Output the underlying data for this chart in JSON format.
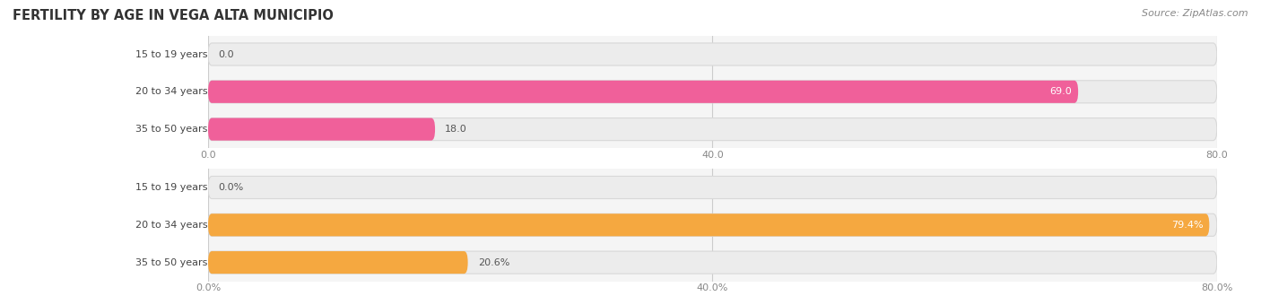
{
  "title": "FERTILITY BY AGE IN VEGA ALTA MUNICIPIO",
  "source": "Source: ZipAtlas.com",
  "chart1": {
    "categories": [
      "15 to 19 years",
      "20 to 34 years",
      "35 to 50 years"
    ],
    "values": [
      0.0,
      69.0,
      18.0
    ],
    "value_labels": [
      "0.0",
      "69.0",
      "18.0"
    ],
    "xlim": [
      0,
      80
    ],
    "xticks": [
      0.0,
      40.0,
      80.0
    ],
    "xtick_labels": [
      "0.0",
      "40.0",
      "80.0"
    ],
    "bar_color": "#f0609a",
    "bar_bg_color": "#ececec",
    "lighter_color": "#f8b8cc"
  },
  "chart2": {
    "categories": [
      "15 to 19 years",
      "20 to 34 years",
      "35 to 50 years"
    ],
    "values": [
      0.0,
      79.4,
      20.6
    ],
    "value_labels": [
      "0.0%",
      "79.4%",
      "20.6%"
    ],
    "xlim": [
      0,
      80
    ],
    "xticks": [
      0.0,
      40.0,
      80.0
    ],
    "xtick_labels": [
      "0.0%",
      "40.0%",
      "80.0%"
    ],
    "bar_color": "#f5a840",
    "bar_bg_color": "#ececec",
    "lighter_color": "#fad8a0"
  },
  "bg_color": "#f5f5f5",
  "fig_width": 14.06,
  "fig_height": 3.3,
  "title_fontsize": 10.5,
  "label_fontsize": 8,
  "value_fontsize": 8,
  "tick_fontsize": 8,
  "source_fontsize": 8,
  "value_color_inside": "#ffffff",
  "value_color_outside": "#555555"
}
